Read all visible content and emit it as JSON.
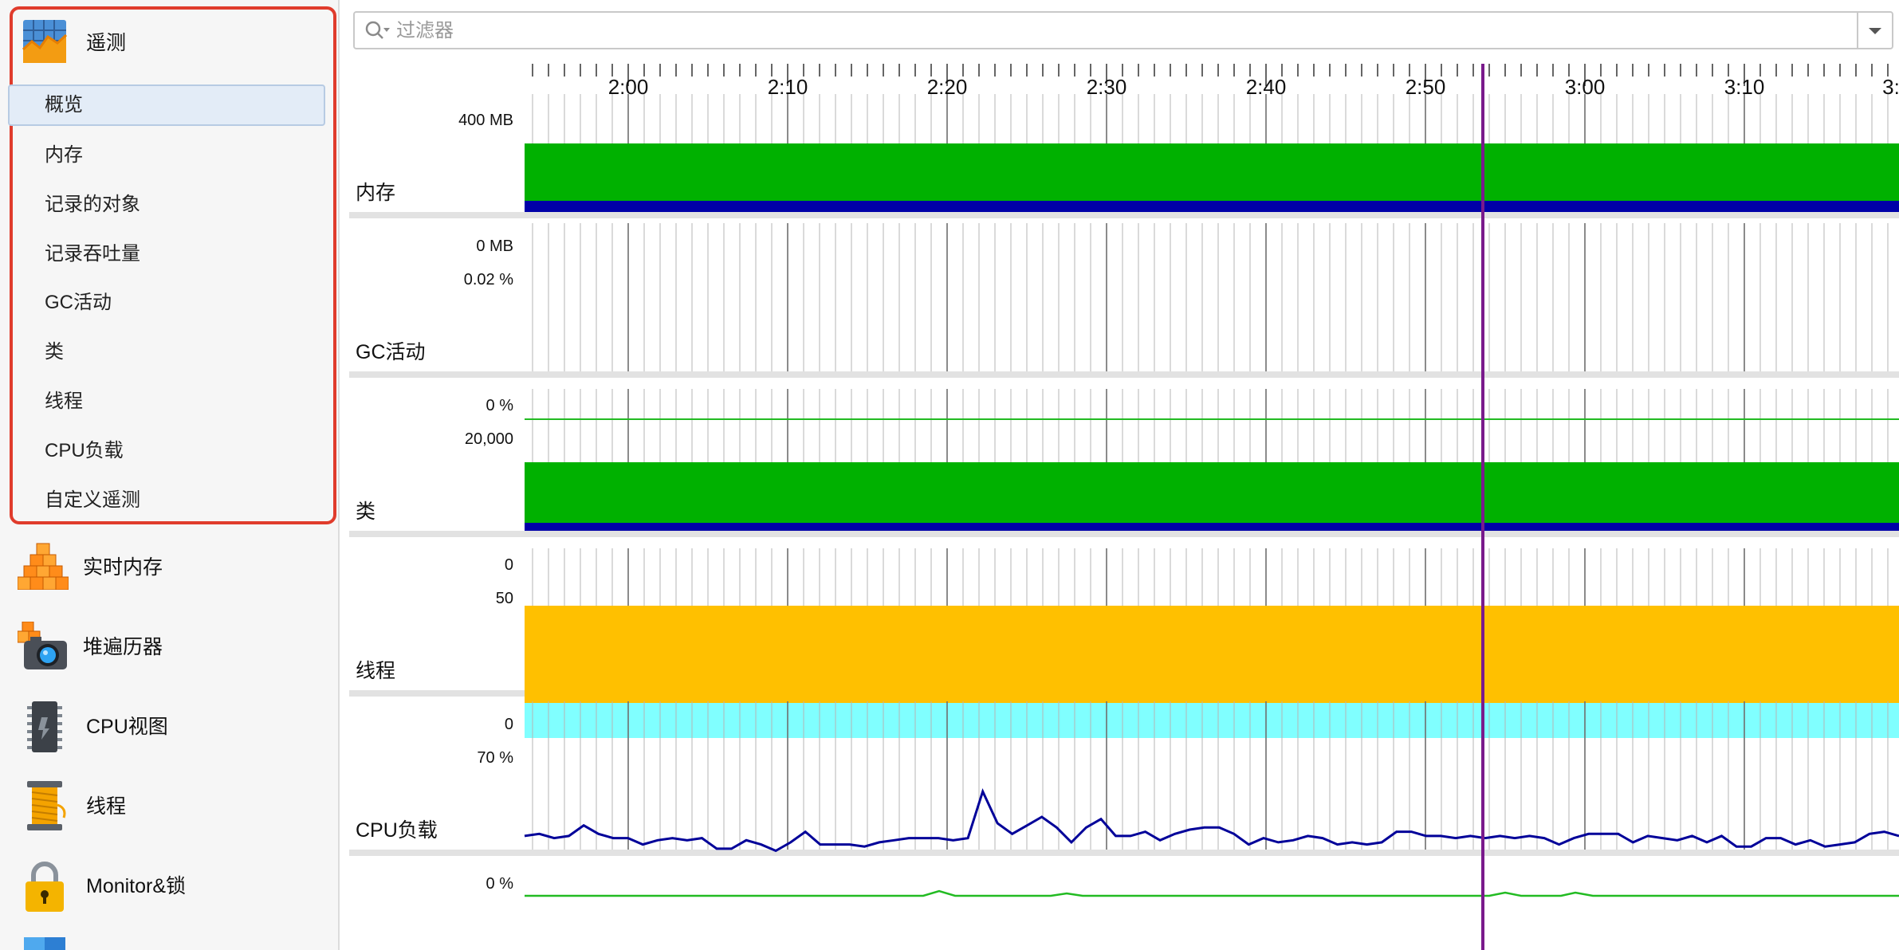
{
  "sidebar": {
    "telemetry": {
      "label": "遥测",
      "items": [
        {
          "label": "概览",
          "selected": true
        },
        {
          "label": "内存"
        },
        {
          "label": "记录的对象"
        },
        {
          "label": "记录吞吐量"
        },
        {
          "label": "GC活动"
        },
        {
          "label": "类"
        },
        {
          "label": "线程"
        },
        {
          "label": "CPU负载"
        },
        {
          "label": "自定义遥测"
        }
      ]
    },
    "views": [
      {
        "label": "实时内存",
        "icon": "live-memory-icon"
      },
      {
        "label": "堆遍历器",
        "icon": "heap-walker-icon"
      },
      {
        "label": "CPU视图",
        "icon": "cpu-views-icon"
      },
      {
        "label": "线程",
        "icon": "threads-icon"
      },
      {
        "label": "Monitor&锁",
        "icon": "monitor-lock-icon"
      }
    ]
  },
  "filter": {
    "placeholder": "过滤器",
    "value": ""
  },
  "timeline": {
    "ticks": [
      "2:00",
      "2:10",
      "2:20",
      "2:30",
      "2:40",
      "2:50",
      "3:00",
      "3:10",
      "3:"
    ],
    "cursor_time": "2:54"
  },
  "colors": {
    "green": "#00b100",
    "navy": "#0000a8",
    "amber": "#ffc000",
    "cyan": "#80ffff",
    "cursor": "#7a1a8c",
    "cpu_line": "#000099",
    "gc_line": "#22bb22"
  },
  "panels": {
    "memory": {
      "label": "内存",
      "y_max": "400 MB",
      "y_min": "0 MB"
    },
    "gc": {
      "label": "GC活动",
      "y_max": "0.02 %",
      "y_min": "0 %"
    },
    "classes": {
      "label": "类",
      "y_max": "20,000",
      "y_min": "0"
    },
    "threads": {
      "label": "线程",
      "y_max": "50",
      "y_min": "0"
    },
    "cpu": {
      "label": "CPU负载",
      "y_max": "70 %",
      "y_min": "0 %"
    }
  },
  "chart_data": {
    "type": "line",
    "title": "",
    "xlabel": "",
    "ylabel": "CPU负载",
    "ylim": [
      0,
      70
    ],
    "x_tick_labels": [
      "2:00",
      "2:10",
      "2:20",
      "2:30",
      "2:40",
      "2:50",
      "3:00",
      "3:10"
    ],
    "series": [
      {
        "values": [
          29,
          30,
          28,
          29,
          34,
          30,
          28,
          28,
          25,
          27,
          28,
          27,
          28,
          23,
          23,
          27,
          25,
          22,
          26,
          31,
          25,
          25,
          25,
          24,
          26,
          27,
          28,
          28,
          28,
          27,
          28,
          50,
          35,
          30,
          34,
          38,
          33,
          26,
          33,
          37,
          29,
          29,
          31,
          27,
          30,
          32,
          33,
          33,
          30,
          25,
          28,
          26,
          27,
          29,
          28,
          25,
          26,
          25,
          26,
          31,
          31,
          29,
          29,
          28,
          29,
          28,
          29,
          28,
          29,
          28,
          25,
          28,
          30,
          30,
          30,
          26,
          29,
          28,
          27,
          29,
          26,
          29,
          24,
          24,
          28,
          28,
          25,
          27,
          24,
          25,
          26,
          30,
          31,
          29
        ]
      }
    ]
  }
}
